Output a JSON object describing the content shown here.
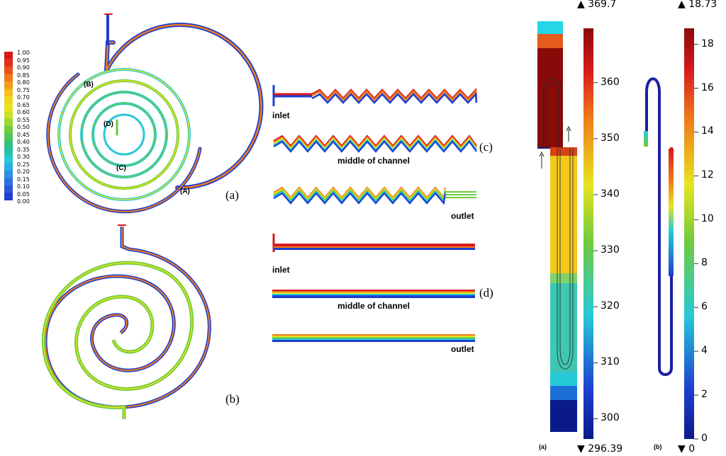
{
  "panel_labels": {
    "a": "(a)",
    "b": "(b)",
    "c": "(c)",
    "d": "(d)"
  },
  "point_labels": {
    "A": "(A)",
    "B": "(B)",
    "C": "(C)",
    "D": "(D)"
  },
  "channel_labels": {
    "inlet_c": "inlet",
    "middle_c": "middle of channel",
    "outlet_c": "outlet",
    "inlet_d": "inlet",
    "middle_d": "middle of channel",
    "outlet_d": "outlet"
  },
  "left_legend": {
    "ticks": [
      "1.00",
      "0.95",
      "0.90",
      "0.85",
      "0.80",
      "0.75",
      "0.70",
      "0.65",
      "0.60",
      "0.55",
      "0.50",
      "0.45",
      "0.40",
      "0.35",
      "0.30",
      "0.25",
      "0.20",
      "0.15",
      "0.10",
      "0.05",
      "0.00"
    ]
  },
  "colorbar_temp": {
    "max_label": "▲ 369.7",
    "min_label": "▼ 296.39",
    "ticks": [
      "360",
      "350",
      "340",
      "330",
      "320",
      "310",
      "300"
    ],
    "panel": "(a)"
  },
  "colorbar_vel": {
    "max_label": "▲ 18.73",
    "min_label": "▼ 0",
    "ticks": [
      "18",
      "16",
      "14",
      "12",
      "10",
      "8",
      "6",
      "4",
      "2",
      "0"
    ],
    "panel": "(b)"
  },
  "colors": {
    "red": "#d7191c",
    "orange": "#f07a1a",
    "yellow": "#e8e41e",
    "green": "#6ecb3c",
    "cyan": "#26c9d8",
    "blue": "#1d3fcf",
    "darkblue": "#0b1a8a",
    "darkred": "#8a0a0a"
  }
}
